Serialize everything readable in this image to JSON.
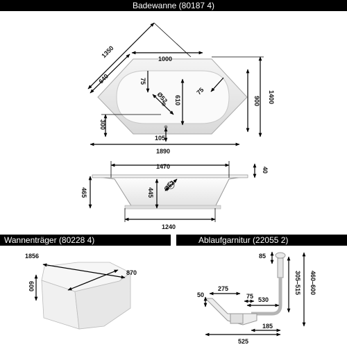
{
  "headers": {
    "bathtub": "Badewanne (80187 4)",
    "support": "Wannenträger (80228 4)",
    "drain": "Ablaufgarnitur (22055 2)"
  },
  "top_view": {
    "diag_1350": "1350",
    "width_1000": "1000",
    "height_1400": "1400",
    "d_640": "640",
    "d_75_left": "75",
    "d_52": "Ø52",
    "d_610": "610",
    "d_75_right": "75",
    "d_900": "900",
    "d_300": "300",
    "d_105": "105",
    "d_1890": "1890"
  },
  "side_view": {
    "d_1470": "1470",
    "d_40": "40",
    "d_465": "465",
    "d_445": "445",
    "d_52": "Ø52",
    "d_1240": "1240"
  },
  "support_view": {
    "d_1856": "1856",
    "d_870": "870",
    "d_600": "600"
  },
  "drain_view": {
    "d_85": "85",
    "d_50": "50",
    "d_275": "275",
    "d_75": "75",
    "d_530": "530",
    "d_305_515": "305–515",
    "d_460_600": "460–600",
    "d_185": "185",
    "d_525": "525"
  }
}
